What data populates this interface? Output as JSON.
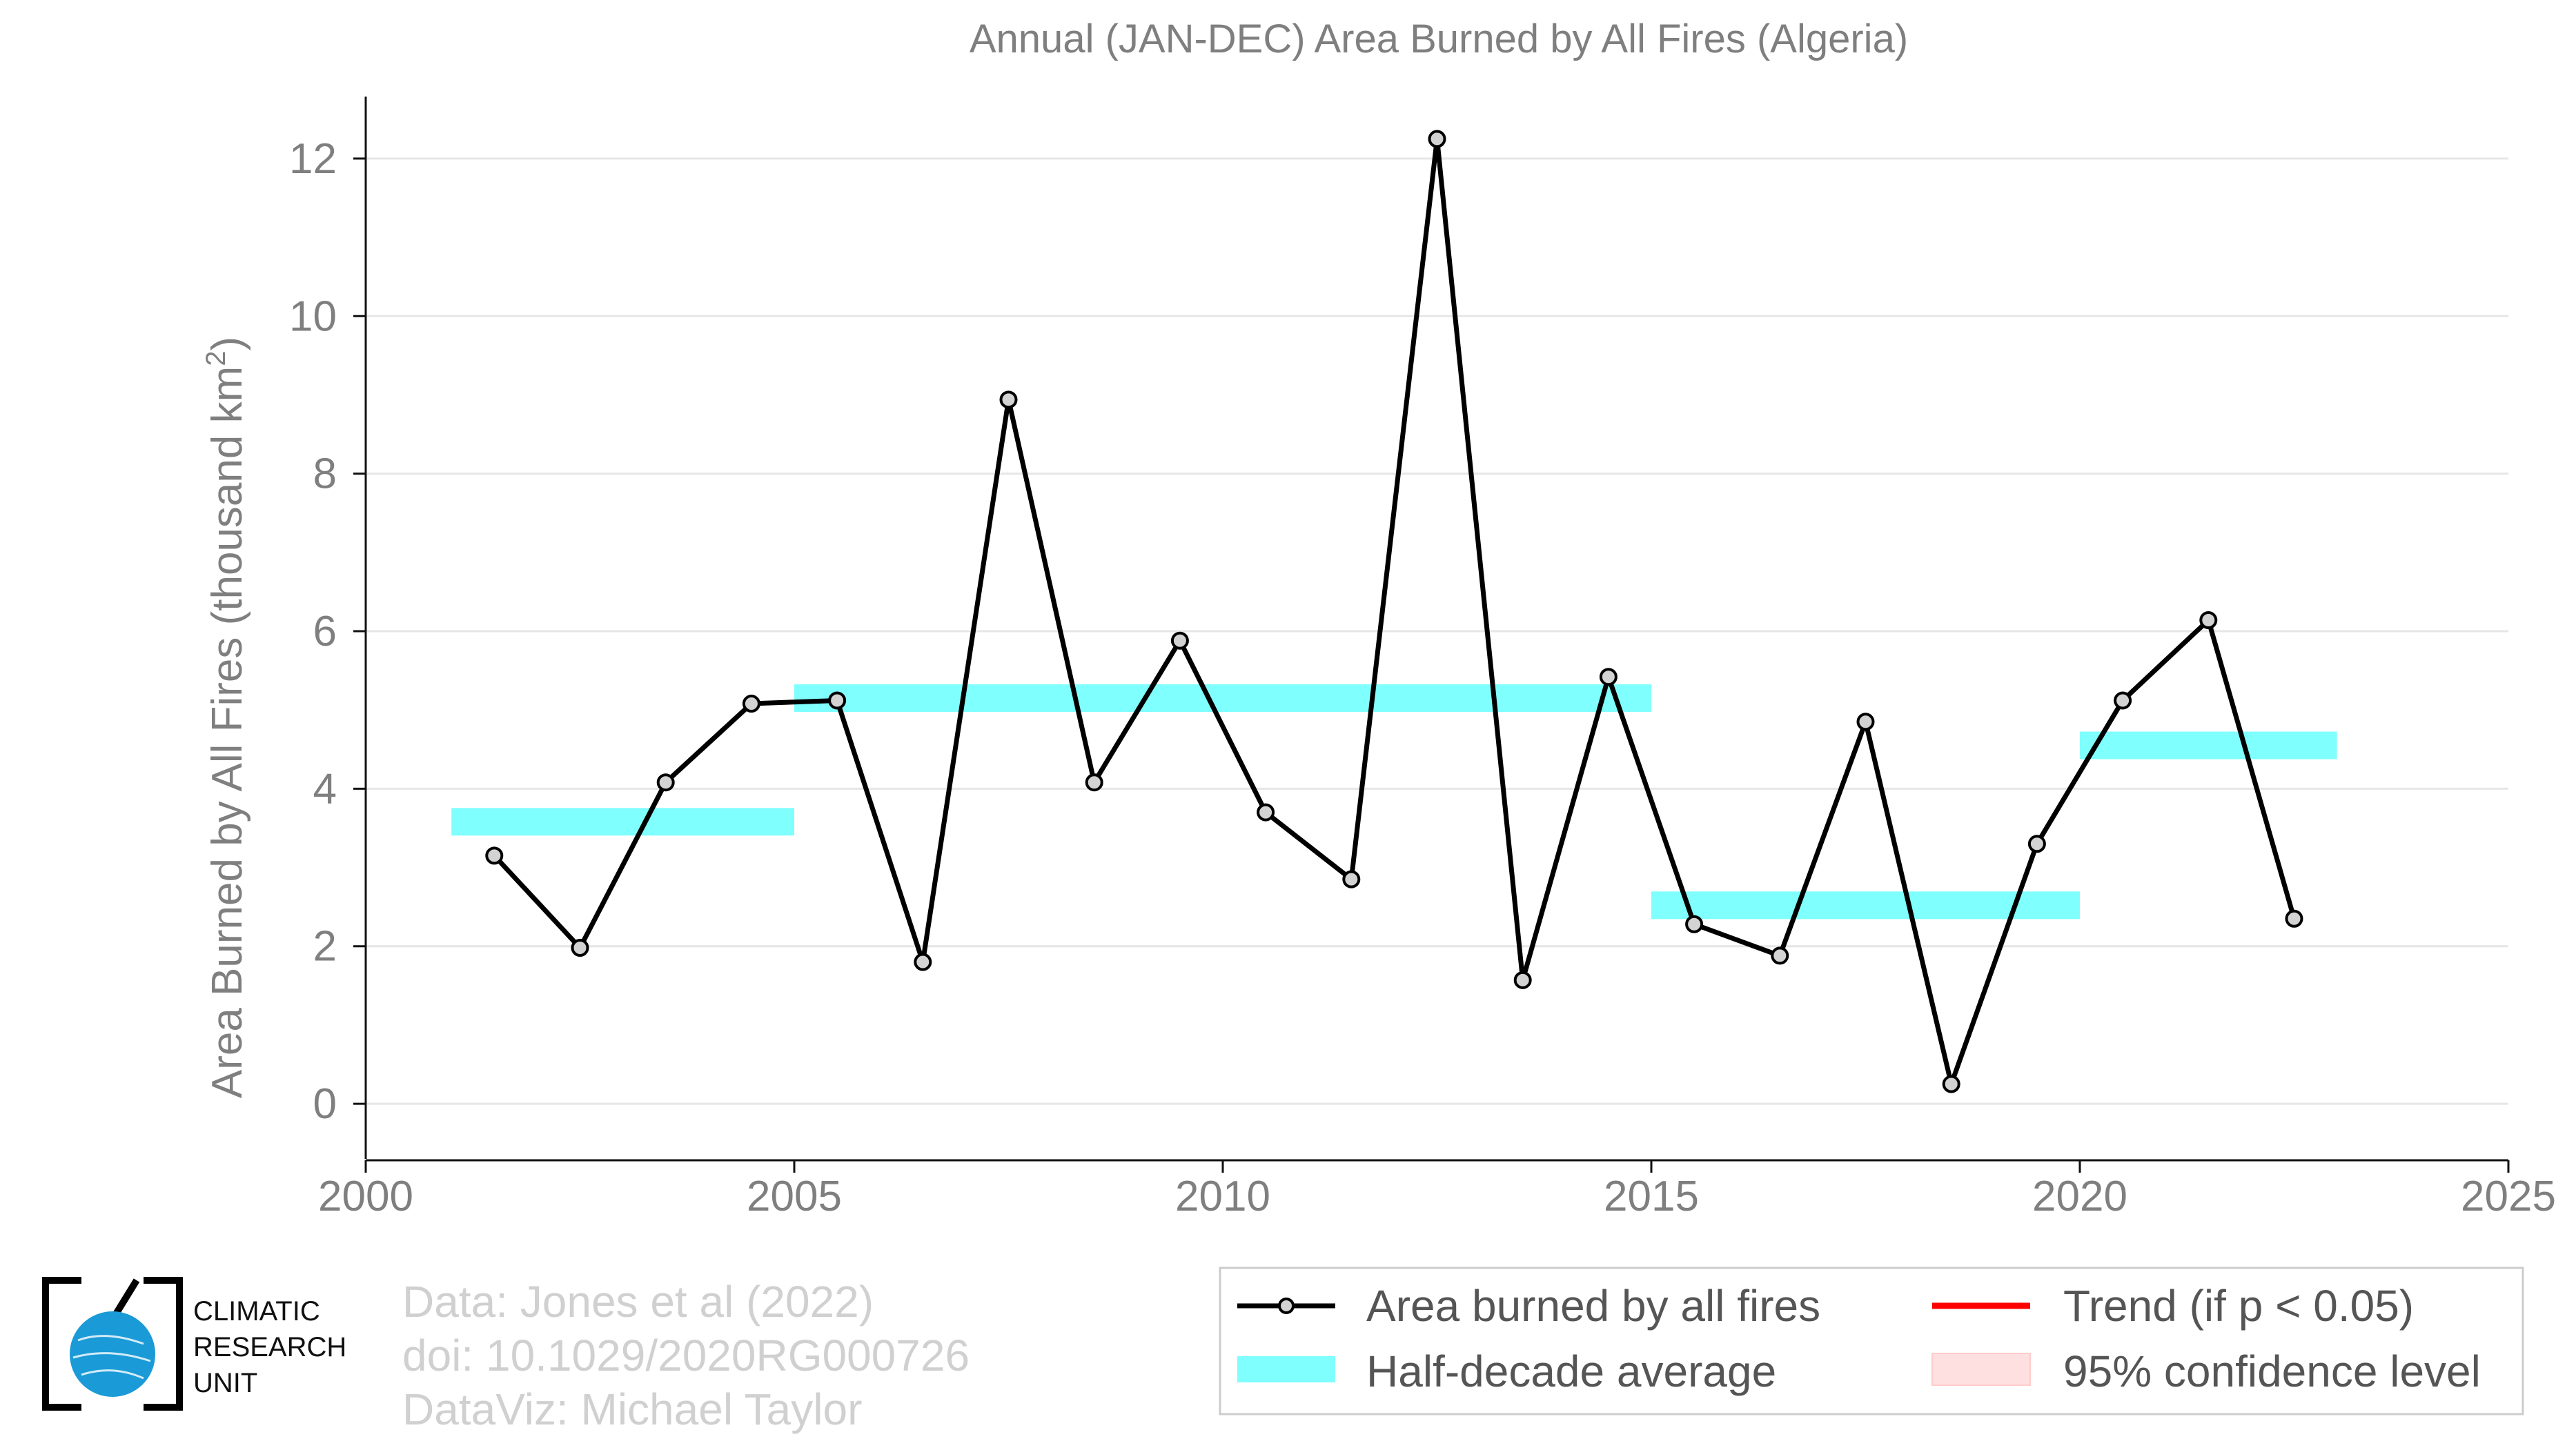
{
  "chart_data": {
    "type": "line",
    "title": "Annual (JAN-DEC) Area Burned by All Fires (Algeria)",
    "ylabel": "Area Burned by All Fires (thousand km",
    "ylabel_sup": "2",
    "ylabel_close": ")",
    "xlim": [
      2000,
      2025
    ],
    "ylim": [
      -0.7,
      12.7
    ],
    "xticks": [
      "2000",
      "2005",
      "2010",
      "2015",
      "2020",
      "2025"
    ],
    "yticks": [
      "0",
      "2",
      "4",
      "6",
      "8",
      "10",
      "12"
    ],
    "series": [
      {
        "name": "Area burned by all fires",
        "color": "#000000",
        "x": [
          2001.5,
          2002.5,
          2003.5,
          2004.5,
          2005.5,
          2006.5,
          2007.5,
          2008.5,
          2009.5,
          2010.5,
          2011.5,
          2012.5,
          2013.5,
          2014.5,
          2015.5,
          2016.5,
          2017.5,
          2018.5,
          2019.5,
          2020.5,
          2021.5,
          2022.5
        ],
        "values": [
          3.15,
          1.98,
          4.08,
          5.08,
          5.12,
          1.8,
          8.94,
          4.08,
          5.88,
          3.7,
          2.85,
          12.25,
          1.57,
          5.42,
          2.28,
          1.88,
          4.85,
          0.25,
          3.3,
          5.12,
          6.14,
          2.35
        ]
      }
    ],
    "half_decade_average": {
      "name": "Half-decade average",
      "color": "#80ffff",
      "segments": [
        {
          "x0": 2001,
          "x1": 2005,
          "value": 3.58
        },
        {
          "x0": 2005,
          "x1": 2015,
          "value": 5.15
        },
        {
          "x0": 2015,
          "x1": 2020,
          "value": 2.52
        },
        {
          "x0": 2020,
          "x1": 2023,
          "value": 4.55
        }
      ]
    },
    "legend": {
      "position": "bottom-right",
      "items": [
        {
          "label": "Area burned by all fires",
          "kind": "line-marker",
          "color": "#000000"
        },
        {
          "label": "Trend (if p < 0.05)",
          "kind": "line",
          "color": "#ff0000"
        },
        {
          "label": "Half-decade average",
          "kind": "band",
          "color": "#80ffff"
        },
        {
          "label": "95% confidence level",
          "kind": "patch",
          "color": "#ffe0e0"
        }
      ]
    },
    "grid": true
  },
  "credits": {
    "line1": "Data: Jones et al (2022)",
    "line2": "doi: 10.1029/2020RG000726",
    "line3": "DataViz: Michael Taylor"
  },
  "logo": {
    "line1": "CLIMATIC",
    "line2": "RESEARCH",
    "line3": "UNIT",
    "icon": "globe-icon",
    "color": "#1a9ad6"
  }
}
